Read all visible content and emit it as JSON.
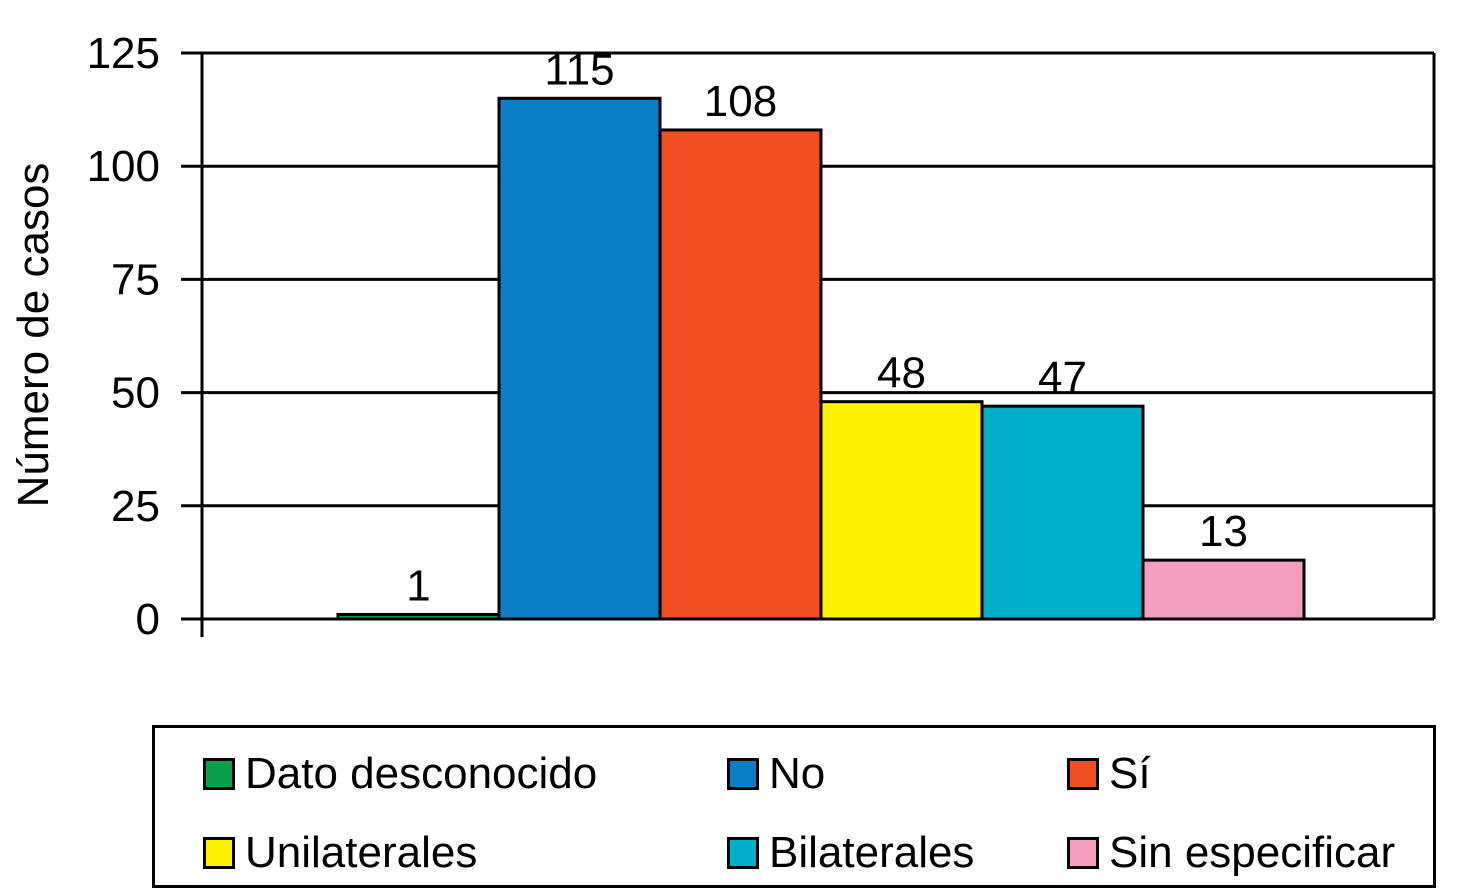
{
  "chart_data": {
    "type": "bar",
    "title": "",
    "xlabel": "",
    "ylabel": "Número de casos",
    "ylim": [
      0,
      125
    ],
    "yticks": [
      0,
      25,
      50,
      75,
      100,
      125
    ],
    "grid": true,
    "legend_position": "bottom",
    "categories": [
      "Dato desconocido",
      "No",
      "Sí",
      "Unilaterales",
      "Bilaterales",
      "Sin especificar"
    ],
    "values": [
      1,
      115,
      108,
      48,
      47,
      13
    ],
    "data_labels": [
      "1",
      "115",
      "108",
      "48",
      "47",
      "13"
    ],
    "colors": [
      "#0aa04a",
      "#0a7fc8",
      "#f04f24",
      "#fff200",
      "#00b0c8",
      "#f39ebf"
    ]
  }
}
